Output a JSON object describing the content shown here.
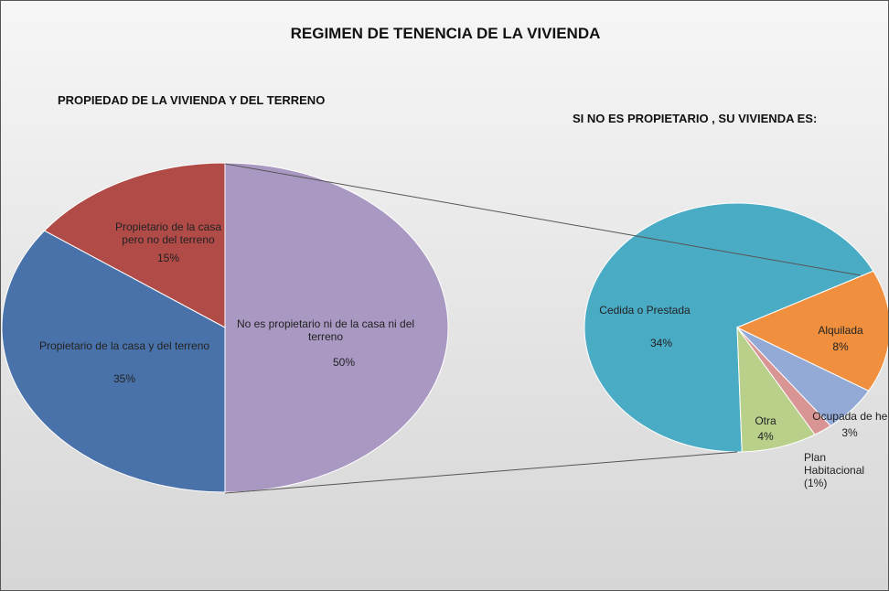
{
  "title": "REGIMEN DE TENENCIA DE LA VIVIENDA",
  "chart_data": [
    {
      "type": "pie",
      "title": "PROPIEDAD DE LA VIVIENDA Y DEL TERRENO",
      "categories": [
        "No es propietario ni de la casa ni del terreno",
        "Propietario de la casa y del terreno",
        "Propietario de la casa pero no del terreno"
      ],
      "values": [
        50,
        35,
        15
      ],
      "value_labels": [
        "50%",
        "35%",
        "15%"
      ],
      "colors": [
        "#a898c2",
        "#4a72aa",
        "#b04b48"
      ]
    },
    {
      "type": "pie",
      "title": "SI NO ES PROPIETARIO , SU VIVIENDA ES:",
      "categories": [
        "Alquilada",
        "Ocupada de hecho",
        "Plan Habitacional",
        "Otra",
        "Cedida o Prestada"
      ],
      "values": [
        8,
        3,
        1,
        4,
        34
      ],
      "value_labels": [
        "8%",
        "3%",
        "(1%)",
        "4%",
        "34%"
      ],
      "colors": [
        "#f0903e",
        "#93aad6",
        "#d99594",
        "#b9d08b",
        "#4aabc5"
      ]
    }
  ]
}
